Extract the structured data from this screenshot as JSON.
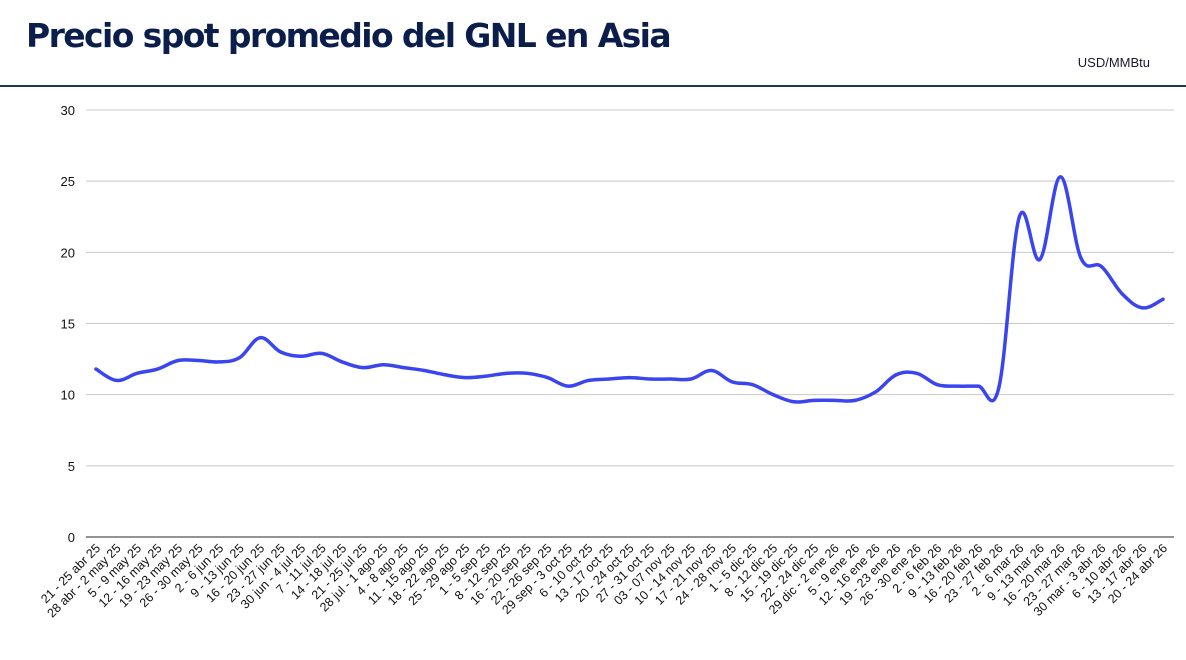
{
  "header": {
    "title": "Precio spot promedio del GNL en Asia",
    "unit": "USD/MMBtu"
  },
  "colors": {
    "line": "#3a45f0",
    "grid": "#c8c8c8",
    "title": "#0b1d4a",
    "rule": "#1f3557"
  },
  "chart_data": {
    "type": "line",
    "title": "Precio spot promedio del GNL en Asia",
    "ylabel": "USD/MMBtu",
    "xlabel": "",
    "ylim": [
      0,
      30
    ],
    "yticks": [
      0,
      5,
      10,
      15,
      20,
      25,
      30
    ],
    "grid": true,
    "legend": "none",
    "categories": [
      "21 - 25 abr 25",
      "28 abr - 2 may 25",
      "5 - 9 may 25",
      "12 - 16 may 25",
      "19 - 23 may 25",
      "26 - 30 may 25",
      "2 - 6 jun 25",
      "9 - 13 jun 25",
      "16 - 20 jun 25",
      "23 - 27 jun 25",
      "30 jun - 4 jul 25",
      "7 - 11 jul 25",
      "14 - 18 jul 25",
      "21 - 25 jul 25",
      "28 jul - 1 ago 25",
      "4 - 8 ago 25",
      "11 - 15 ago 25",
      "18 - 22 ago 25",
      "25 - 29 ago 25",
      "1 - 5 sep 25",
      "8 - 12 sep 25",
      "16 - 20 sep 25",
      "22 - 26 sep 25",
      "29 sep - 3 oct 25",
      "6 - 10 oct 25",
      "13 - 17 oct 25",
      "20 - 24 oct 25",
      "27 - 31 oct 25",
      "03 - 07 nov 25",
      "10 - 14 nov 25",
      "17 - 21 nov 25",
      "24 - 28 nov 25",
      "1 - 5 dic 25",
      "8 - 12 dic 25",
      "15 - 19 dic 25",
      "22 - 24 dic 25",
      "29 dic - 2 ene 26",
      "5 - 9 ene 26",
      "12 - 16 ene 26",
      "19 - 23 ene 26",
      "26 - 30 ene 26",
      "2 - 6 feb 26",
      "9 - 13 feb 26",
      "16 - 20 feb 26",
      "23 - 27 feb 26",
      "2 - 6 mar 26",
      "9 - 13 mar 26",
      "16 - 20 mar 26",
      "23 - 27 mar 26",
      "30 mar - 3 abr 26",
      "6 - 10 abr 26",
      "13 - 17 abr 26",
      "20 - 24 abr 26"
    ],
    "series": [
      {
        "values": [
          11.8,
          11.0,
          11.5,
          11.8,
          12.4,
          12.4,
          12.3,
          12.6,
          14.0,
          13.0,
          12.7,
          12.9,
          12.3,
          11.9,
          12.1,
          11.9,
          11.7,
          11.4,
          11.2,
          11.3,
          11.5,
          11.5,
          11.2,
          10.6,
          11.0,
          11.1,
          11.2,
          11.1,
          11.1,
          11.1,
          11.7,
          10.9,
          10.7,
          10.0,
          9.5,
          9.6,
          9.6,
          9.6,
          10.2,
          11.4,
          11.5,
          10.7,
          10.6,
          10.6,
          10.5,
          22.5,
          19.5,
          25.3,
          19.6,
          19.0,
          17.1,
          16.1,
          16.7
        ]
      }
    ]
  }
}
